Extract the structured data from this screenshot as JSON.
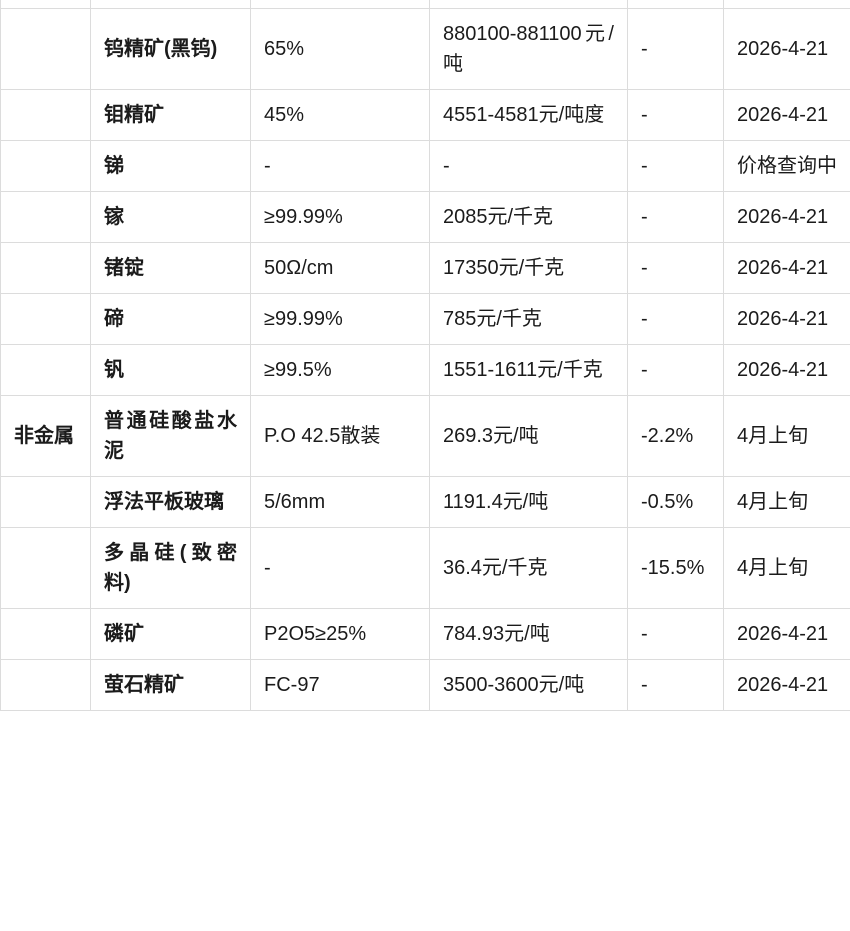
{
  "colors": {
    "background": "#ffffff",
    "grid_border": "#dcdcdc",
    "text": "#1b1b1b"
  },
  "table": {
    "description": "commodity-price-table-cropped",
    "columns": [
      "category",
      "product",
      "spec",
      "price",
      "change",
      "date"
    ],
    "rows": [
      {
        "category": "",
        "product": "钨精矿(黑钨)",
        "spec": "65%",
        "price": "880100-881100元/吨",
        "change": "-",
        "date": "2026-4-21"
      },
      {
        "category": "",
        "product": "钼精矿",
        "spec": "45%",
        "price": "4551-4581元/吨度",
        "change": "-",
        "date": "2026-4-21"
      },
      {
        "category": "",
        "product": "锑",
        "spec": "-",
        "price": "-",
        "change": "-",
        "date": "价格查询中"
      },
      {
        "category": "",
        "product": "镓",
        "spec": "≥99.99%",
        "price": "2085元/千克",
        "change": "-",
        "date": "2026-4-21"
      },
      {
        "category": "",
        "product": "锗锭",
        "spec": "50Ω/cm",
        "price": "17350元/千克",
        "change": "-",
        "date": "2026-4-21"
      },
      {
        "category": "",
        "product": "碲",
        "spec": "≥99.99%",
        "price": "785元/千克",
        "change": "-",
        "date": "2026-4-21"
      },
      {
        "category": "",
        "product": "钒",
        "spec": "≥99.5%",
        "price": "1551-1611元/千克",
        "change": "-",
        "date": "2026-4-21"
      },
      {
        "category": "非金属",
        "product": "普通硅酸盐水泥",
        "spec": "P.O 42.5散装",
        "price": "269.3元/吨",
        "change": "-2.2%",
        "date": "4月上旬"
      },
      {
        "category": "",
        "product": "浮法平板玻璃",
        "spec": "5/6mm",
        "price": "1191.4元/吨",
        "change": "-0.5%",
        "date": "4月上旬"
      },
      {
        "category": "",
        "product": "多晶硅(致密料)",
        "spec": "-",
        "price": "36.4元/千克",
        "change": "-15.5%",
        "date": "4月上旬"
      },
      {
        "category": "",
        "product": "磷矿",
        "spec": "P2O5≥25%",
        "price": "784.93元/吨",
        "change": "-",
        "date": "2026-4-21"
      },
      {
        "category": "",
        "product": "萤石精矿",
        "spec": "FC-97",
        "price": "3500-3600元/吨",
        "change": "-",
        "date": "2026-4-21"
      }
    ]
  }
}
